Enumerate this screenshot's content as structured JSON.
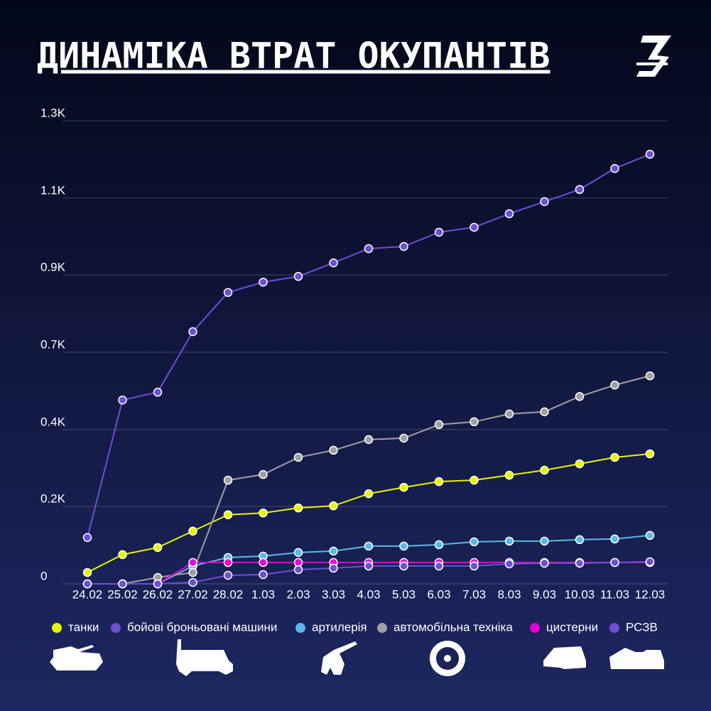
{
  "chart_data": {
    "type": "line",
    "title": "ДИНАМІКА ВТРАТ ОКУПАНТІВ",
    "categories": [
      "24.02",
      "25.02",
      "26.02",
      "27.02",
      "28.02",
      "1.03",
      "2.03",
      "3.03",
      "4.03",
      "5.03",
      "6.03",
      "7.03",
      "8.03",
      "9.03",
      "10.03",
      "11.03",
      "12.03"
    ],
    "series": [
      {
        "name": "танки",
        "color": "#e8f500",
        "values": [
          32,
          82,
          102,
          148,
          194,
          199,
          213,
          219,
          253,
          271,
          287,
          291,
          305,
          319,
          337,
          355,
          365
        ]
      },
      {
        "name": "бойові броньовані машини",
        "color": "#6e4fd6",
        "values": [
          130,
          516,
          538,
          708,
          818,
          847,
          863,
          901,
          941,
          947,
          987,
          1001,
          1039,
          1073,
          1107,
          1166,
          1206
        ]
      },
      {
        "name": "артилерія",
        "color": "#5bb8e8",
        "values": [
          0,
          0,
          0,
          50,
          74,
          78,
          88,
          92,
          106,
          106,
          110,
          118,
          120,
          120,
          124,
          126,
          136
        ]
      },
      {
        "name": "автомобільна техніка",
        "color": "#a0a0a0",
        "values": [
          0,
          0,
          18,
          32,
          291,
          307,
          355,
          375,
          405,
          409,
          447,
          455,
          477,
          483,
          526,
          558,
          584
        ]
      },
      {
        "name": "цистерни",
        "color": "#e600d6",
        "values": [
          0,
          0,
          0,
          60,
          60,
          60,
          60,
          60,
          60,
          60,
          60,
          60,
          60,
          60,
          60,
          60,
          60
        ]
      },
      {
        "name": "РСЗВ",
        "color": "#6e4fd6",
        "values": [
          0,
          0,
          0,
          4,
          24,
          26,
          40,
          44,
          50,
          50,
          50,
          50,
          56,
          58,
          58,
          60,
          62
        ]
      }
    ],
    "ylim": [
      0,
      1300
    ],
    "yticks": [
      0,
      {
        "value": 217,
        "label": "0.2K"
      },
      {
        "value": 433,
        "label": "0.4K"
      },
      {
        "value": 650,
        "label": "0.7K"
      },
      {
        "value": 867,
        "label": "0.9K"
      },
      {
        "value": 1083,
        "label": "1.1K"
      },
      {
        "value": 1300,
        "label": "1.3K"
      }
    ],
    "grid": true,
    "legend": "bottom"
  }
}
